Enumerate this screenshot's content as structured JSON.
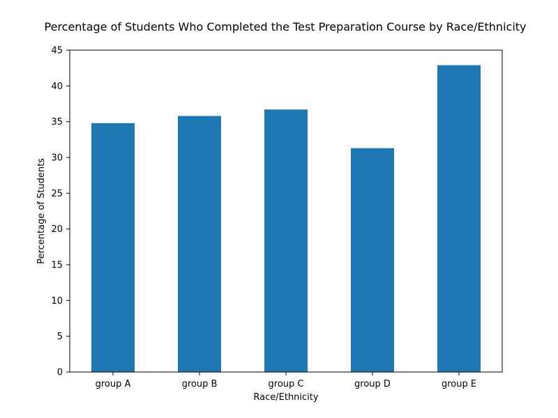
{
  "chart_data": {
    "type": "bar",
    "title": "Percentage of Students Who Completed the Test Preparation Course by Race/Ethnicity",
    "xlabel": "Race/Ethnicity",
    "ylabel": "Percentage of Students",
    "categories": [
      "group A",
      "group B",
      "group C",
      "group D",
      "group E"
    ],
    "values": [
      34.8,
      35.8,
      36.7,
      31.3,
      42.9
    ],
    "ylim": [
      0,
      45
    ],
    "yticks": [
      0,
      5,
      10,
      15,
      20,
      25,
      30,
      35,
      40,
      45
    ],
    "bar_color": "#1f77b4",
    "grid": false,
    "legend": "none"
  }
}
